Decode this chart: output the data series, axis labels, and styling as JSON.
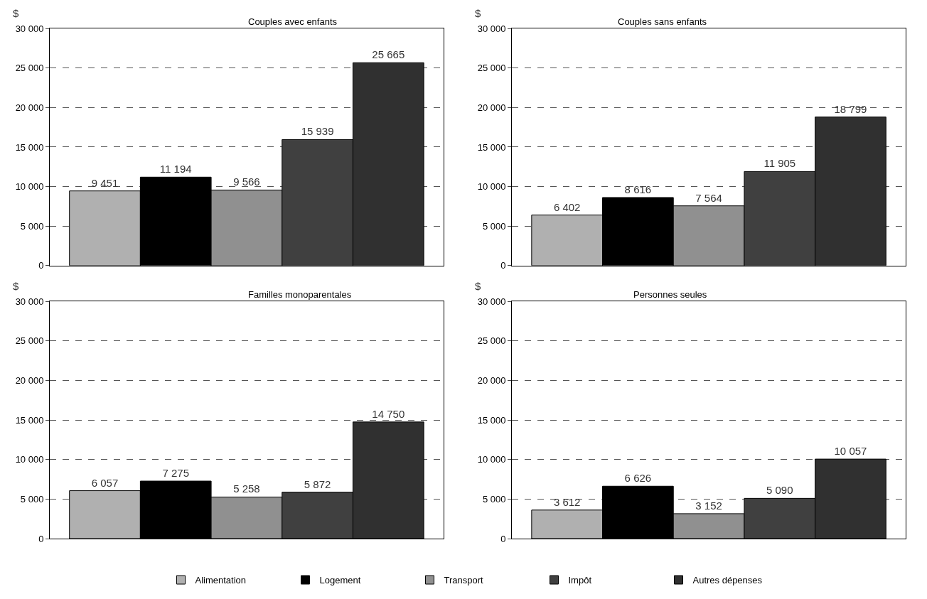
{
  "chart_data": [
    {
      "type": "bar",
      "title": "Couples avec enfants",
      "ylabel": "$",
      "categories": [
        null
      ],
      "series": [
        {
          "name": "Alimentation",
          "color": "#b0b0b0",
          "values": [
            9451
          ]
        },
        {
          "name": "Logement",
          "color": "#000000",
          "values": [
            11194
          ]
        },
        {
          "name": "Transport",
          "color": "#909090",
          "values": [
            9566
          ]
        },
        {
          "name": "Impôt",
          "color": "#404040",
          "values": [
            15939
          ]
        },
        {
          "name": "Autres dépenses",
          "color": "#303030",
          "values": [
            25665
          ]
        }
      ],
      "ylim": [
        0,
        30000
      ],
      "yticks": [
        {
          "value": 0,
          "label": "0"
        },
        {
          "value": 5000,
          "label": "5 000"
        },
        {
          "value": 10000,
          "label": "10 000"
        },
        {
          "value": 15000,
          "label": "15 000"
        },
        {
          "value": 20000,
          "label": "20 000"
        },
        {
          "value": 25000,
          "label": "25 000"
        },
        {
          "value": 30000,
          "label": "30 000"
        }
      ],
      "grid": "y",
      "data_labels": true,
      "legend": "bottom"
    },
    {
      "type": "bar",
      "title": "Couples sans enfants",
      "ylabel": "$",
      "categories": [
        null
      ],
      "series": [
        {
          "color": "#b0b0b0",
          "values": [
            6402
          ]
        },
        {
          "color": "#000000",
          "values": [
            8616
          ]
        },
        {
          "color": "#909090",
          "values": [
            7564
          ]
        },
        {
          "color": "#404040",
          "values": [
            11905
          ]
        },
        {
          "color": "#303030",
          "values": [
            18799
          ]
        }
      ],
      "ylim": [
        0,
        30000
      ],
      "yticks": [
        {
          "value": 0,
          "label": "0"
        },
        {
          "value": 5000,
          "label": "5 000"
        },
        {
          "value": 10000,
          "label": "10 000"
        },
        {
          "value": 15000,
          "label": "15 000"
        },
        {
          "value": 20000,
          "label": "20 000"
        },
        {
          "value": 25000,
          "label": "25 000"
        },
        {
          "value": 30000,
          "label": "30 000"
        }
      ],
      "grid": "y",
      "data_labels": true
    },
    {
      "type": "bar",
      "title": "Familles monoparentales",
      "ylabel": "$",
      "categories": [
        null
      ],
      "series": [
        {
          "color": "#b0b0b0",
          "values": [
            6057
          ]
        },
        {
          "color": "#000000",
          "values": [
            7275
          ]
        },
        {
          "color": "#909090",
          "values": [
            5258
          ]
        },
        {
          "color": "#404040",
          "values": [
            5872
          ]
        },
        {
          "color": "#303030",
          "values": [
            14750
          ]
        }
      ],
      "ylim": [
        0,
        30000
      ],
      "yticks": [
        {
          "value": 0,
          "label": "0"
        },
        {
          "value": 5000,
          "label": "5 000"
        },
        {
          "value": 10000,
          "label": "10 000"
        },
        {
          "value": 15000,
          "label": "15 000"
        },
        {
          "value": 20000,
          "label": "20 000"
        },
        {
          "value": 25000,
          "label": "25 000"
        },
        {
          "value": 30000,
          "label": "30 000"
        }
      ],
      "grid": "y",
      "data_labels": true
    },
    {
      "type": "bar",
      "title": "Personnes seules",
      "ylabel": "$",
      "categories": [
        null
      ],
      "series": [
        {
          "color": "#b0b0b0",
          "values": [
            3612
          ]
        },
        {
          "color": "#000000",
          "values": [
            6626
          ]
        },
        {
          "color": "#909090",
          "values": [
            3152
          ]
        },
        {
          "color": "#404040",
          "values": [
            5090
          ]
        },
        {
          "color": "#303030",
          "values": [
            10057
          ]
        }
      ],
      "ylim": [
        0,
        30000
      ],
      "yticks": [
        {
          "value": 0,
          "label": "0"
        },
        {
          "value": 5000,
          "label": "5 000"
        },
        {
          "value": 10000,
          "label": "10 000"
        },
        {
          "value": 15000,
          "label": "15 000"
        },
        {
          "value": 20000,
          "label": "20 000"
        },
        {
          "value": 25000,
          "label": "25 000"
        },
        {
          "value": 30000,
          "label": "30 000"
        }
      ],
      "grid": "y",
      "data_labels": true
    }
  ]
}
